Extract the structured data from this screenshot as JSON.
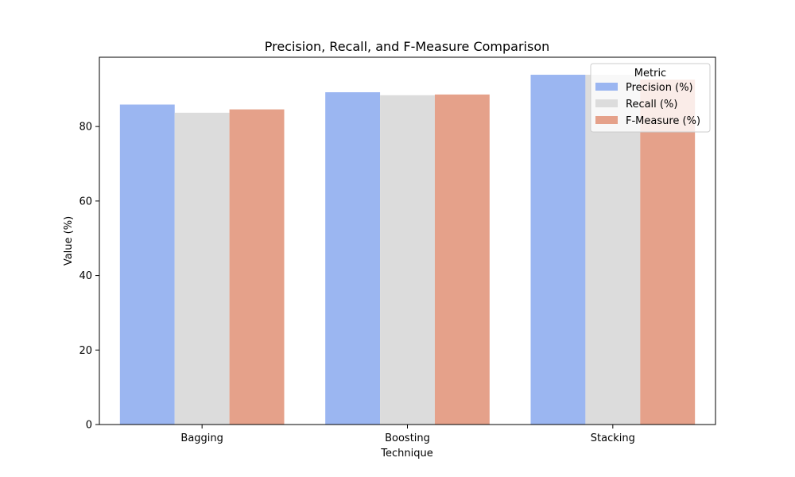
{
  "colors": {
    "precision": "#9BB6F1",
    "recall": "#DCDCDC",
    "fmeasure": "#E5A18A",
    "axis": "#000000",
    "legend_border": "#cccccc"
  },
  "chart_data": {
    "type": "bar",
    "title": "Precision, Recall, and F-Measure Comparison",
    "xlabel": "Technique",
    "ylabel": "Value (%)",
    "categories": [
      "Bagging",
      "Boosting",
      "Stacking"
    ],
    "ylim": [
      0,
      98.6
    ],
    "yticks": [
      0,
      20,
      40,
      60,
      80
    ],
    "grid": false,
    "legend": {
      "title": "Metric",
      "placement": "top-right"
    },
    "series": [
      {
        "name": "Precision (%)",
        "values": [
          85.9,
          89.2,
          93.9
        ]
      },
      {
        "name": "Recall (%)",
        "values": [
          83.7,
          88.4,
          93.9
        ]
      },
      {
        "name": "F-Measure (%)",
        "values": [
          84.6,
          88.6,
          92.6
        ]
      }
    ]
  }
}
